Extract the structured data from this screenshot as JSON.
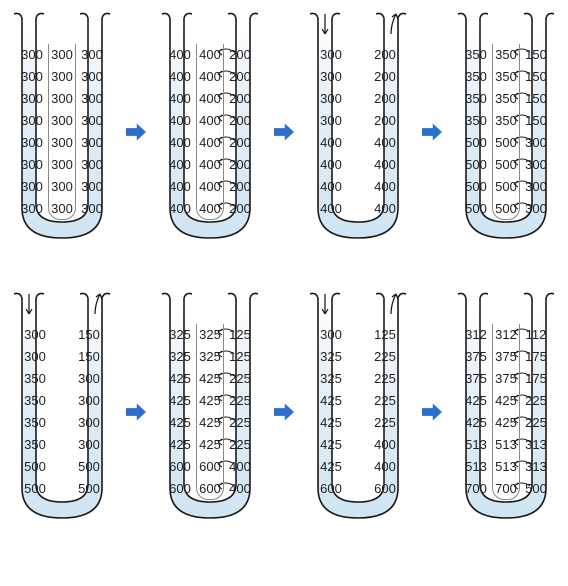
{
  "colors": {
    "tube_stroke": "#1a1a1a",
    "tube_fill_top": "#ffffff",
    "tube_fill_bottom": "#cfe4f2",
    "arrow_fill": "#2b6fc9",
    "flow_arrow": "#111111",
    "text": "#222222",
    "divider": "#888888"
  },
  "fontsize": 13,
  "rows": [
    {
      "tubes": [
        {
          "showMiddle": true,
          "showFlow": false,
          "showOutflow": false,
          "left": [
            "300",
            "300",
            "300",
            "300",
            "300",
            "300",
            "300",
            "300"
          ],
          "middle": [
            "300",
            "300",
            "300",
            "300",
            "300",
            "300",
            "300",
            "300"
          ],
          "right": [
            "300",
            "300",
            "300",
            "300",
            "300",
            "300",
            "300",
            "300"
          ]
        },
        {
          "showMiddle": true,
          "showFlow": true,
          "showOutflow": false,
          "left": [
            "400",
            "400",
            "400",
            "400",
            "400",
            "400",
            "400",
            "400"
          ],
          "middle": [
            "400",
            "400",
            "400",
            "400",
            "400",
            "400",
            "400",
            "400"
          ],
          "right": [
            "200",
            "200",
            "200",
            "200",
            "200",
            "200",
            "200",
            "200"
          ]
        },
        {
          "showMiddle": false,
          "showFlow": false,
          "showOutflow": true,
          "left": [
            "300",
            "300",
            "300",
            "300",
            "400",
            "400",
            "400",
            "400"
          ],
          "middle": [
            "",
            "",
            "",
            "",
            "",
            "",
            "",
            ""
          ],
          "right": [
            "200",
            "200",
            "200",
            "200",
            "400",
            "400",
            "400",
            "400"
          ]
        },
        {
          "showMiddle": true,
          "showFlow": true,
          "showOutflow": false,
          "left": [
            "350",
            "350",
            "350",
            "350",
            "500",
            "500",
            "500",
            "500"
          ],
          "middle": [
            "350",
            "350",
            "350",
            "350",
            "500",
            "500",
            "500",
            "500"
          ],
          "right": [
            "150",
            "150",
            "150",
            "150",
            "300",
            "300",
            "300",
            "300"
          ]
        }
      ]
    },
    {
      "tubes": [
        {
          "showMiddle": false,
          "showFlow": false,
          "showOutflow": true,
          "left": [
            "300",
            "300",
            "350",
            "350",
            "350",
            "350",
            "500",
            "500"
          ],
          "middle": [
            "",
            "",
            "",
            "",
            "",
            "",
            "",
            ""
          ],
          "right": [
            "150",
            "150",
            "300",
            "300",
            "300",
            "300",
            "500",
            "500"
          ]
        },
        {
          "showMiddle": true,
          "showFlow": true,
          "showOutflow": false,
          "left": [
            "325",
            "325",
            "425",
            "425",
            "425",
            "425",
            "600",
            "600"
          ],
          "middle": [
            "325",
            "325",
            "425",
            "425",
            "425",
            "425",
            "600",
            "600"
          ],
          "right": [
            "125",
            "125",
            "225",
            "225",
            "225",
            "225",
            "400",
            "400"
          ]
        },
        {
          "showMiddle": false,
          "showFlow": false,
          "showOutflow": true,
          "left": [
            "300",
            "325",
            "325",
            "425",
            "425",
            "425",
            "425",
            "600"
          ],
          "middle": [
            "",
            "",
            "",
            "",
            "",
            "",
            "",
            ""
          ],
          "right": [
            "125",
            "225",
            "225",
            "225",
            "225",
            "400",
            "400",
            "600"
          ]
        },
        {
          "showMiddle": true,
          "showFlow": true,
          "showOutflow": false,
          "left": [
            "312",
            "375",
            "375",
            "425",
            "425",
            "513",
            "513",
            "700"
          ],
          "middle": [
            "312",
            "375",
            "375",
            "425",
            "425",
            "513",
            "513",
            "700"
          ],
          "right": [
            "112",
            "175",
            "175",
            "225",
            "225",
            "313",
            "313",
            "500"
          ]
        }
      ]
    }
  ]
}
